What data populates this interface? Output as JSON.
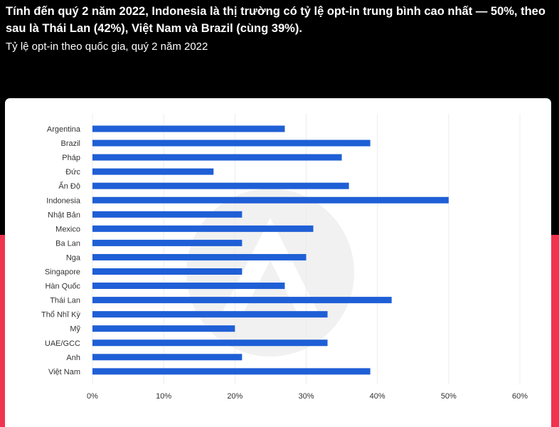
{
  "header": {
    "headline": "Tính đến quý 2 năm 2022, Indonesia là thị trường có tỷ lệ opt-in trung bình cao nhất — 50%, theo sau là Thái Lan (42%), Việt Nam và Brazil (cùng 39%).",
    "subtitle": "Tỷ lệ opt-in theo quốc gia, quý 2 năm 2022"
  },
  "colors": {
    "background": "#000000",
    "accent": "#f0334f",
    "card": "#ffffff",
    "bar": "#1f5fd6"
  },
  "chart_data": {
    "type": "bar",
    "orientation": "horizontal",
    "categories": [
      "Argentina",
      "Brazil",
      "Pháp",
      "Đức",
      "Ấn Độ",
      "Indonesia",
      "Nhật Bản",
      "Mexico",
      "Ba Lan",
      "Nga",
      "Singapore",
      "Hàn Quốc",
      "Thái Lan",
      "Thổ Nhĩ Kỳ",
      "Mỹ",
      "UAE/GCC",
      "Anh",
      "Việt Nam"
    ],
    "values": [
      27,
      39,
      35,
      17,
      36,
      50,
      21,
      31,
      21,
      30,
      21,
      27,
      42,
      33,
      20,
      33,
      21,
      39
    ],
    "xlim": [
      0,
      60
    ],
    "xticks": [
      "0%",
      "10%",
      "20%",
      "30%",
      "40%",
      "50%",
      "60%"
    ],
    "grid": "vertical",
    "legend": "none"
  }
}
